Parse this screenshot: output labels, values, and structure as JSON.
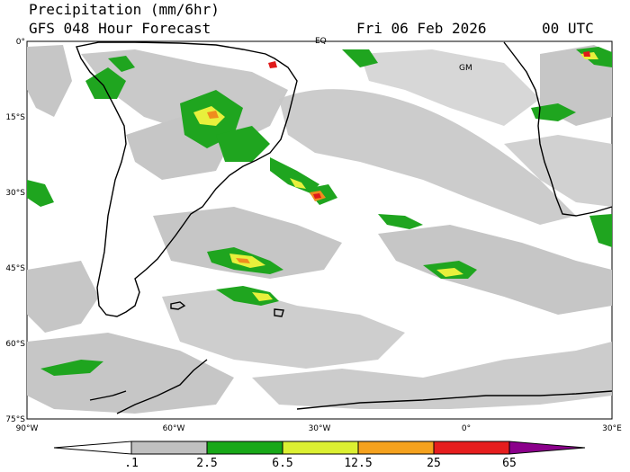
{
  "header": {
    "title": "Precipitation (mm/6hr)",
    "subtitle": "GFS 048 Hour Forecast",
    "date": "Fri 06 Feb 2026",
    "time": "00 UTC"
  },
  "map": {
    "lat_labels": [
      "0°",
      "15°S",
      "30°S",
      "45°S",
      "60°S",
      "75°S"
    ],
    "lon_labels": [
      "90°W",
      "60°W",
      "30°W",
      "0°",
      "30°E"
    ],
    "markers": [
      "EQ",
      "GM"
    ]
  },
  "colorbar": {
    "labels": [
      ".1",
      "2.5",
      "6.5",
      "12.5",
      "25",
      "65"
    ],
    "colors": [
      "#ffffff",
      "#c0c0c0",
      "#18a818",
      "#dcf032",
      "#f5a21e",
      "#e61e1e",
      "#8b008b"
    ]
  },
  "legend_colors": {
    "light": "#c8c8c8",
    "moderate": "#1fa51f",
    "heavy": "#e8f03c",
    "very_heavy": "#f08c1e",
    "extreme": "#e01a1a"
  }
}
